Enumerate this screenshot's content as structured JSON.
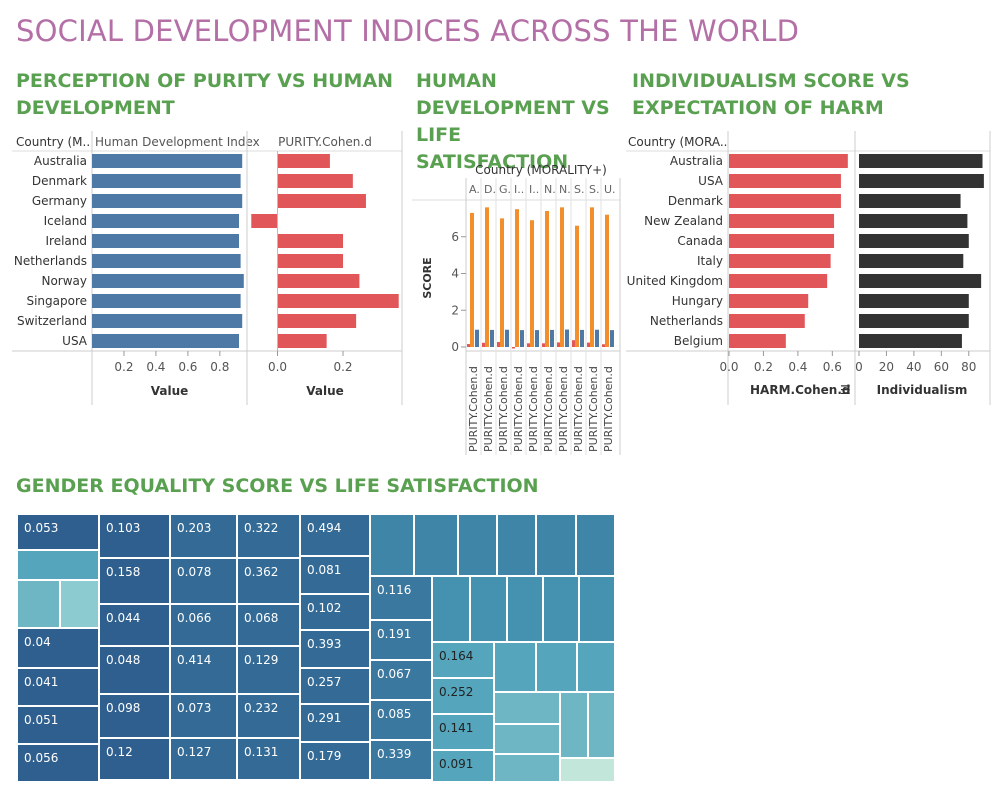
{
  "title": "SOCIAL DEVELOPMENT INDICES ACROSS THE WORLD",
  "colors": {
    "title": "#b36fa6",
    "section": "#5aa051",
    "blue": "#4e79a7",
    "red": "#e15759",
    "orange": "#f28e2b",
    "dark": "#333333"
  },
  "purity": {
    "title": "PERCEPTION OF PURITY VS HUMAN DEVELOPMENT",
    "row_header": "Country (M..",
    "col1_header": "Human Development Index",
    "col2_header": "PURITY.Cohen.d",
    "axis1_label": "Value",
    "axis2_label": "Value"
  },
  "hd_life": {
    "title": "HUMAN DEVELOPMENT VS LIFE SATISFACTION",
    "col_header": "Country (MORALITY+)",
    "ylabel": "SCORE"
  },
  "indiv": {
    "title": "INDIVIDUALISM SCORE VS EXPECTATION OF HARM",
    "row_header": "Country (MORA..",
    "axis1_label": "HARM.Cohen.d",
    "axis2_label": "Individualism"
  },
  "gender": {
    "title": "GENDER EQUALITY SCORE VS LIFE SATISFACTION"
  },
  "chart_data": [
    {
      "type": "bar",
      "orientation": "horizontal",
      "categories": [
        "Australia",
        "Denmark",
        "Germany",
        "Iceland",
        "Ireland",
        "Netherlands",
        "Norway",
        "Singapore",
        "Switzerland",
        "USA"
      ],
      "series": [
        {
          "name": "Human Development Index",
          "values": [
            0.94,
            0.93,
            0.94,
            0.92,
            0.92,
            0.93,
            0.95,
            0.93,
            0.94,
            0.92
          ]
        },
        {
          "name": "PURITY.Cohen.d",
          "values": [
            0.16,
            0.23,
            0.27,
            -0.08,
            0.2,
            0.2,
            0.25,
            0.37,
            0.24,
            0.15
          ]
        }
      ],
      "x_ticks": [
        [
          "0.2",
          "0.4",
          "0.6",
          "0.8"
        ],
        [
          "0.0",
          "0.2"
        ]
      ],
      "xlim": [
        [
          0,
          0.97
        ],
        [
          -0.09,
          0.38
        ]
      ],
      "xlabel": "Value"
    },
    {
      "type": "bar",
      "categories": [
        "A.",
        "D.",
        "G.",
        "I..",
        "I..",
        "N.",
        "N.",
        "S.",
        "S.",
        "U."
      ],
      "series": [
        {
          "name": "",
          "color": "orange",
          "values": [
            7.3,
            7.6,
            7.0,
            7.5,
            6.9,
            7.4,
            7.6,
            6.6,
            7.6,
            7.2
          ]
        },
        {
          "name": "",
          "color": "blue",
          "values": [
            0.94,
            0.93,
            0.94,
            0.92,
            0.92,
            0.93,
            0.95,
            0.93,
            0.94,
            0.92
          ]
        },
        {
          "name": "",
          "color": "red",
          "values": [
            0.16,
            0.23,
            0.27,
            -0.08,
            0.2,
            0.2,
            0.25,
            0.37,
            0.24,
            0.15
          ]
        }
      ],
      "x_labels_bottom": [
        "PURITY.Cohen.d",
        "PURITY.Cohen.d",
        "PURITY.Cohen.d",
        "PURITY.Cohen.d",
        "PURITY.Cohen.d",
        "PURITY.Cohen.d",
        "PURITY.Cohen.d",
        "PURITY.Cohen.d",
        "PURITY.Cohen.d",
        "PURITY.Cohen.d"
      ],
      "y_ticks": [
        "0",
        "2",
        "4",
        "6"
      ],
      "ylim": [
        0,
        8
      ],
      "ylabel": "SCORE"
    },
    {
      "type": "bar",
      "orientation": "horizontal",
      "categories": [
        "Australia",
        "USA",
        "Denmark",
        "New Zealand",
        "Canada",
        "Italy",
        "United Kingdom",
        "Hungary",
        "Netherlands",
        "Belgium"
      ],
      "series": [
        {
          "name": "HARM.Cohen.d",
          "values": [
            0.69,
            0.65,
            0.65,
            0.61,
            0.61,
            0.59,
            0.57,
            0.46,
            0.44,
            0.33
          ]
        },
        {
          "name": "Individualism",
          "values": [
            90,
            91,
            74,
            79,
            80,
            76,
            89,
            80,
            80,
            75
          ]
        }
      ],
      "x_ticks": [
        [
          "0.0",
          "0.2",
          "0.4",
          "0.6"
        ],
        [
          "0",
          "20",
          "40",
          "60",
          "80"
        ]
      ],
      "xlim": [
        [
          0,
          0.72
        ],
        [
          0,
          94
        ]
      ]
    },
    {
      "type": "heatmap",
      "subtype": "treemap",
      "labels": [
        "0.053",
        "0.04",
        "0.041",
        "0.051",
        "0.056",
        "0.103",
        "0.158",
        "0.044",
        "0.048",
        "0.098",
        "0.12",
        "0.203",
        "0.078",
        "0.066",
        "0.414",
        "0.073",
        "0.127",
        "0.322",
        "0.362",
        "0.068",
        "0.129",
        "0.232",
        "0.131",
        "0.494",
        "0.081",
        "0.102",
        "0.393",
        "0.257",
        "0.291",
        "0.179",
        "0.116",
        "0.191",
        "0.067",
        "0.085",
        "0.339",
        "0.164",
        "0.252",
        "0.141",
        "0.091"
      ]
    }
  ]
}
